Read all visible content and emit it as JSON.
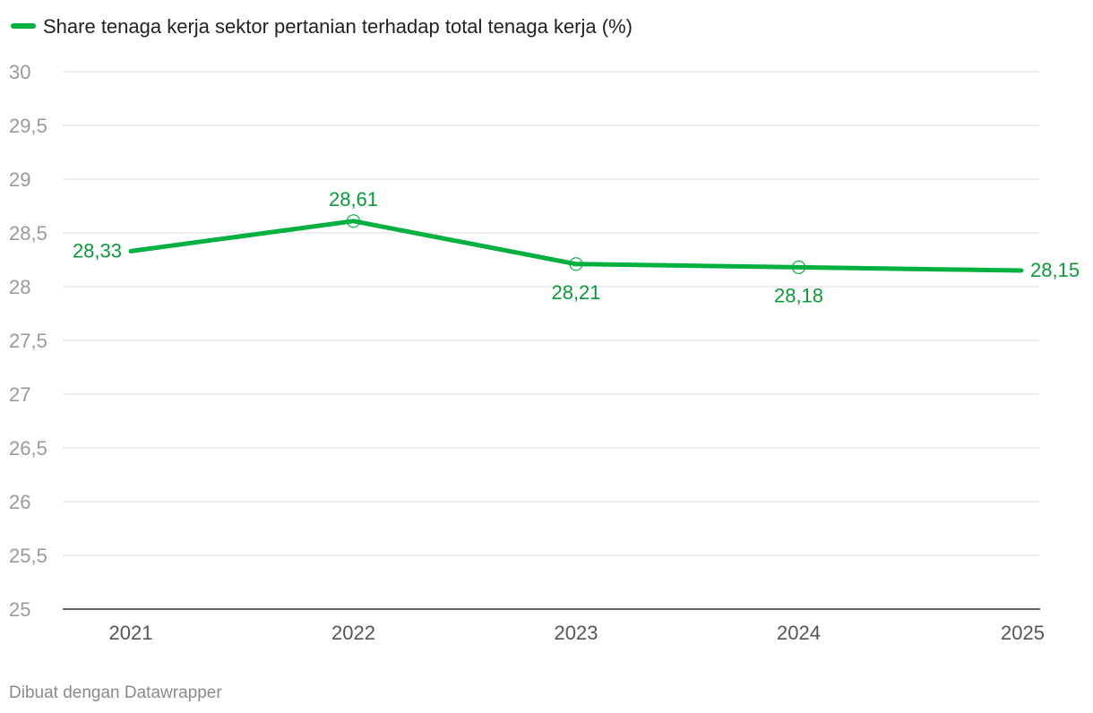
{
  "chart_data": {
    "type": "line",
    "title": "",
    "xlabel": "",
    "ylabel": "",
    "categories": [
      "2021",
      "2022",
      "2023",
      "2024",
      "2025"
    ],
    "series": [
      {
        "name": "Share tenaga kerja sektor pertanian terhadap total tenaga kerja (%)",
        "values": [
          28.33,
          28.61,
          28.21,
          28.18,
          28.15
        ],
        "labels": [
          "28,33",
          "28,61",
          "28,21",
          "28,18",
          "28,15"
        ]
      }
    ],
    "ylim": [
      25,
      30
    ],
    "yticks": [
      25,
      25.5,
      26,
      26.5,
      27,
      27.5,
      28,
      28.5,
      29,
      29.5,
      30
    ],
    "ytick_labels": [
      "25",
      "25,5",
      "26",
      "26,5",
      "27",
      "27,5",
      "28",
      "28,5",
      "29",
      "29,5",
      "30"
    ],
    "grid": true,
    "legend": "top-left"
  },
  "colors": {
    "series": "#00b140",
    "label": "#0a9a3a",
    "grid": "#dddddd",
    "baseline": "#333333"
  },
  "footer": {
    "credit": "Dibuat dengan Datawrapper"
  }
}
